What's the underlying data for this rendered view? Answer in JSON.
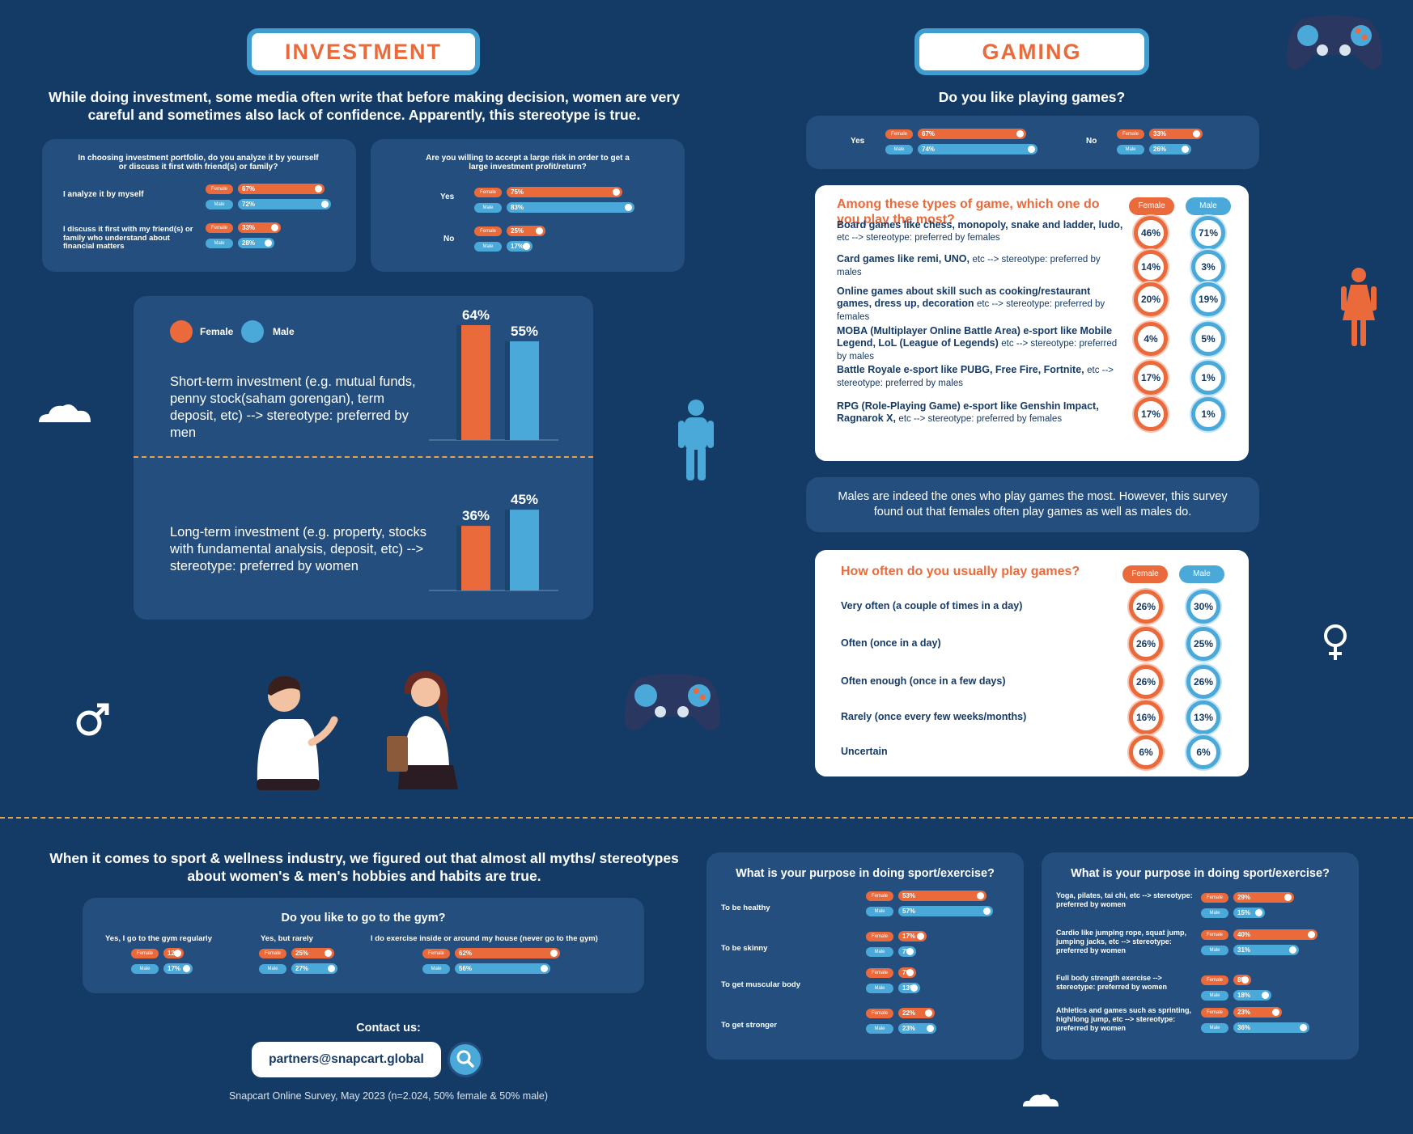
{
  "investment": {
    "title": "INVESTMENT",
    "intro": "While doing investment, some media often write that before making decision, women are very careful and sometimes also lack of confidence. Apparently, this stereotype is true.",
    "q1": {
      "question": "In choosing investment portfolio, do you analyze it by yourself or discuss it first with friend(s) or family?",
      "rows": [
        {
          "label": "I analyze it by myself",
          "female": 67,
          "male": 72
        },
        {
          "label": "I discuss it first with my friend(s) or family who understand about financial matters",
          "female": 33,
          "male": 28
        }
      ]
    },
    "q2": {
      "question": "Are you willing to accept a large risk in order to get a large investment profit/return?",
      "rows": [
        {
          "label": "Yes",
          "female": 75,
          "male": 83
        },
        {
          "label": "No",
          "female": 25,
          "male": 17
        }
      ]
    },
    "legend": {
      "female": "Female",
      "male": "Male"
    },
    "short_term": "Short-term investment (e.g. mutual funds, penny stock(saham gorengan), term deposit, etc) --> stereotype: preferred by men",
    "long_term": "Long-term investment (e.g. property, stocks with fundamental analysis, deposit, etc) --> stereotype: preferred by women"
  },
  "gaming": {
    "title": "GAMING",
    "question": "Do you like playing games?",
    "like": [
      {
        "label": "Yes",
        "female": 67,
        "male": 74
      },
      {
        "label": "No",
        "female": 33,
        "male": 26
      }
    ],
    "types_title": "Among these types of game, which one do you play the most?",
    "types": [
      {
        "name": "Board games like chess, monopoly, snake and ladder, ludo,",
        "rest": "etc --> stereotype: preferred by females",
        "female": "46%",
        "male": "71%"
      },
      {
        "name": "Card games like remi, UNO,",
        "rest": "etc --> stereotype: preferred by males",
        "female": "14%",
        "male": "3%"
      },
      {
        "name": "Online games about skill such as cooking/restaurant games, dress up, decoration",
        "rest": "etc --> stereotype: preferred by females",
        "female": "20%",
        "male": "19%"
      },
      {
        "name": "MOBA (Multiplayer Online Battle Area) e-sport like Mobile Legend, LoL (League of Legends)",
        "rest": "etc --> stereotype: preferred by males",
        "female": "4%",
        "male": "5%"
      },
      {
        "name": "Battle Royale e-sport like PUBG, Free Fire, Fortnite,",
        "rest": "etc --> stereotype: preferred by males",
        "female": "17%",
        "male": "1%"
      },
      {
        "name": "RPG (Role-Playing Game) e-sport like Genshin Impact, Ragnarok X,",
        "rest": "etc --> stereotype: preferred by females",
        "female": "17%",
        "male": "1%"
      }
    ],
    "note": "Males are indeed the ones who play games the most. However, this survey found out that females often play games as well as males do.",
    "freq_title": "How often do you usually play games?",
    "freq": [
      {
        "label": "Very often (a couple of times in a day)",
        "female": "26%",
        "male": "30%"
      },
      {
        "label": "Often (once in a day)",
        "female": "26%",
        "male": "25%"
      },
      {
        "label": "Often enough (once in a few days)",
        "female": "26%",
        "male": "26%"
      },
      {
        "label": "Rarely (once every few weeks/months)",
        "female": "16%",
        "male": "13%"
      },
      {
        "label": "Uncertain",
        "female": "6%",
        "male": "6%"
      }
    ]
  },
  "sport": {
    "intro": "When it comes to sport & wellness industry, we figured out that almost all myths/ stereotypes about women's & men's hobbies and habits are true.",
    "gym_title": "Do you like to go to the gym?",
    "gym": [
      {
        "label": "Yes, I go to the gym regularly",
        "female": 12,
        "male": 17
      },
      {
        "label": "Yes, but rarely",
        "female": 25,
        "male": 27
      },
      {
        "label": "I do exercise inside or around my house (never go to the gym)",
        "female": 62,
        "male": 56
      }
    ],
    "purpose_title": "What is your purpose in doing sport/exercise?",
    "purpose": [
      {
        "label": "To be healthy",
        "female": 53,
        "male": 57
      },
      {
        "label": "To be skinny",
        "female": 17,
        "male": 7
      },
      {
        "label": "To get muscular body",
        "female": 7,
        "male": 13
      },
      {
        "label": "To get stronger",
        "female": 22,
        "male": 23
      }
    ],
    "types_title": "What is your purpose in doing sport/exercise?",
    "types": [
      {
        "label": "Yoga, pilates, tai chi, etc --> stereotype: preferred by women",
        "female": 29,
        "male": 15
      },
      {
        "label": "Cardio like jumping rope, squat jump, jumping jacks, etc --> stereotype: preferred by women",
        "female": 40,
        "male": 31
      },
      {
        "label": "Full body strength exercise --> stereotype: preferred by women",
        "female": 8,
        "male": 18
      },
      {
        "label": "Athletics and games such as sprinting, high/long jump, etc --> stereotype: preferred by women",
        "female": 23,
        "male": 36
      }
    ]
  },
  "tags": {
    "female": "Female",
    "male": "Male"
  },
  "contact": {
    "label": "Contact us:",
    "email": "partners@snapcart.global"
  },
  "footer": "Snapcart Online Survey, May 2023 (n=2.024, 50% female & 50% male)",
  "chart_data": [
    {
      "type": "bar",
      "categories": [
        "Female",
        "Male"
      ],
      "series": [
        {
          "name": "Short-term investment",
          "values": [
            64,
            55
          ]
        }
      ],
      "data_labels": [
        "64%",
        "55%"
      ],
      "legend": [
        "Female",
        "Male"
      ],
      "colors": {
        "female": "#ea6a3c",
        "male": "#4aa9d8"
      }
    },
    {
      "type": "bar",
      "categories": [
        "Female",
        "Male"
      ],
      "series": [
        {
          "name": "Long-term investment",
          "values": [
            36,
            45
          ]
        }
      ],
      "data_labels": [
        "36%",
        "45%"
      ],
      "colors": {
        "female": "#ea6a3c",
        "male": "#4aa9d8"
      }
    }
  ]
}
